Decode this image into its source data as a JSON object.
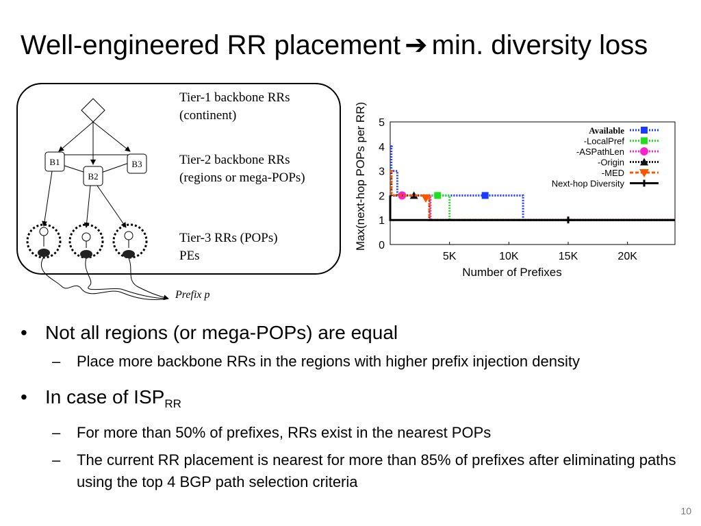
{
  "slide": {
    "title_left": "Well-engineered RR placement",
    "title_arrow": "➔",
    "title_right": "min. diversity loss",
    "page_number": "10"
  },
  "diagram": {
    "tier1_line1": "Tier-1 backbone RRs",
    "tier1_line2": "(continent)",
    "tier2_line1": "Tier-2 backbone RRs",
    "tier2_line2": "(regions or mega-POPs)",
    "tier3_line1": "Tier-3 RRs (POPs)",
    "tier3_line2": "PEs",
    "node_b1": "B1",
    "node_b2": "B2",
    "node_b3": "B3",
    "prefix_label": "Prefix p"
  },
  "chart_data": {
    "type": "line",
    "xlabel": "Number of Prefixes",
    "ylabel": "Max(next-hop POPs per RR)",
    "xlim": [
      0,
      24000
    ],
    "ylim": [
      0,
      5
    ],
    "xticks": [
      "5K",
      "10K",
      "15K",
      "20K"
    ],
    "xtick_values": [
      5000,
      10000,
      15000,
      20000
    ],
    "yticks": [
      "0",
      "1",
      "2",
      "3",
      "4",
      "5"
    ],
    "legend_position": "top-right",
    "series": [
      {
        "name": "Available",
        "color": "#1a3cff",
        "style": "dotted",
        "marker": "square",
        "points": [
          [
            0,
            4
          ],
          [
            100,
            4
          ],
          [
            100,
            3
          ],
          [
            600,
            3
          ],
          [
            600,
            2
          ],
          [
            11200,
            2
          ],
          [
            11200,
            1
          ],
          [
            24000,
            1
          ]
        ],
        "markers": [
          [
            8000,
            2
          ]
        ]
      },
      {
        "name": "-LocalPref",
        "color": "#22dd22",
        "style": "dotted",
        "marker": "square",
        "points": [
          [
            0,
            3
          ],
          [
            100,
            3
          ],
          [
            100,
            2
          ],
          [
            5000,
            2
          ],
          [
            5000,
            1
          ],
          [
            24000,
            1
          ]
        ],
        "markers": [
          [
            4000,
            2
          ]
        ]
      },
      {
        "name": "-ASPathLen",
        "color": "#ff22cc",
        "style": "dotted",
        "marker": "circle",
        "points": [
          [
            0,
            3
          ],
          [
            100,
            3
          ],
          [
            100,
            2
          ],
          [
            3400,
            2
          ],
          [
            3400,
            1
          ],
          [
            24000,
            1
          ]
        ],
        "markers": [
          [
            1000,
            2
          ]
        ]
      },
      {
        "name": "-Origin",
        "color": "#111111",
        "style": "dotted",
        "marker": "triangle",
        "points": [
          [
            0,
            3
          ],
          [
            100,
            3
          ],
          [
            100,
            2
          ],
          [
            3300,
            2
          ],
          [
            3300,
            1
          ],
          [
            24000,
            1
          ]
        ],
        "markers": [
          [
            2000,
            2
          ]
        ]
      },
      {
        "name": "-MED",
        "color": "#ff5500",
        "style": "dashed",
        "marker": "triangle-down",
        "points": [
          [
            0,
            3
          ],
          [
            100,
            3
          ],
          [
            100,
            2
          ],
          [
            3300,
            2
          ],
          [
            3300,
            1
          ],
          [
            24000,
            1
          ]
        ],
        "markers": [
          [
            3000,
            1.9
          ]
        ]
      },
      {
        "name": "Next-hop Diversity",
        "color": "#000000",
        "style": "solid",
        "marker": "plus",
        "points": [
          [
            0,
            2
          ],
          [
            0,
            1
          ],
          [
            24000,
            1
          ]
        ],
        "markers": [
          [
            15000,
            1
          ]
        ]
      }
    ]
  },
  "bullets": [
    {
      "level": 1,
      "marker": "•",
      "text": "Not all regions (or mega-POPs) are equal"
    },
    {
      "level": 2,
      "marker": "–",
      "text": "Place more backbone RRs in the regions with higher prefix injection density"
    },
    {
      "level": 1,
      "marker": "•",
      "text": "In case of ISP",
      "subscript": "RR"
    },
    {
      "level": 2,
      "marker": "–",
      "text": "For more than 50% of prefixes, RRs exist in the nearest POPs"
    },
    {
      "level": 2,
      "marker": "–",
      "text": "The current RR placement is nearest for more than 85% of prefixes after eliminating paths using the top 4 BGP path selection criteria"
    }
  ]
}
